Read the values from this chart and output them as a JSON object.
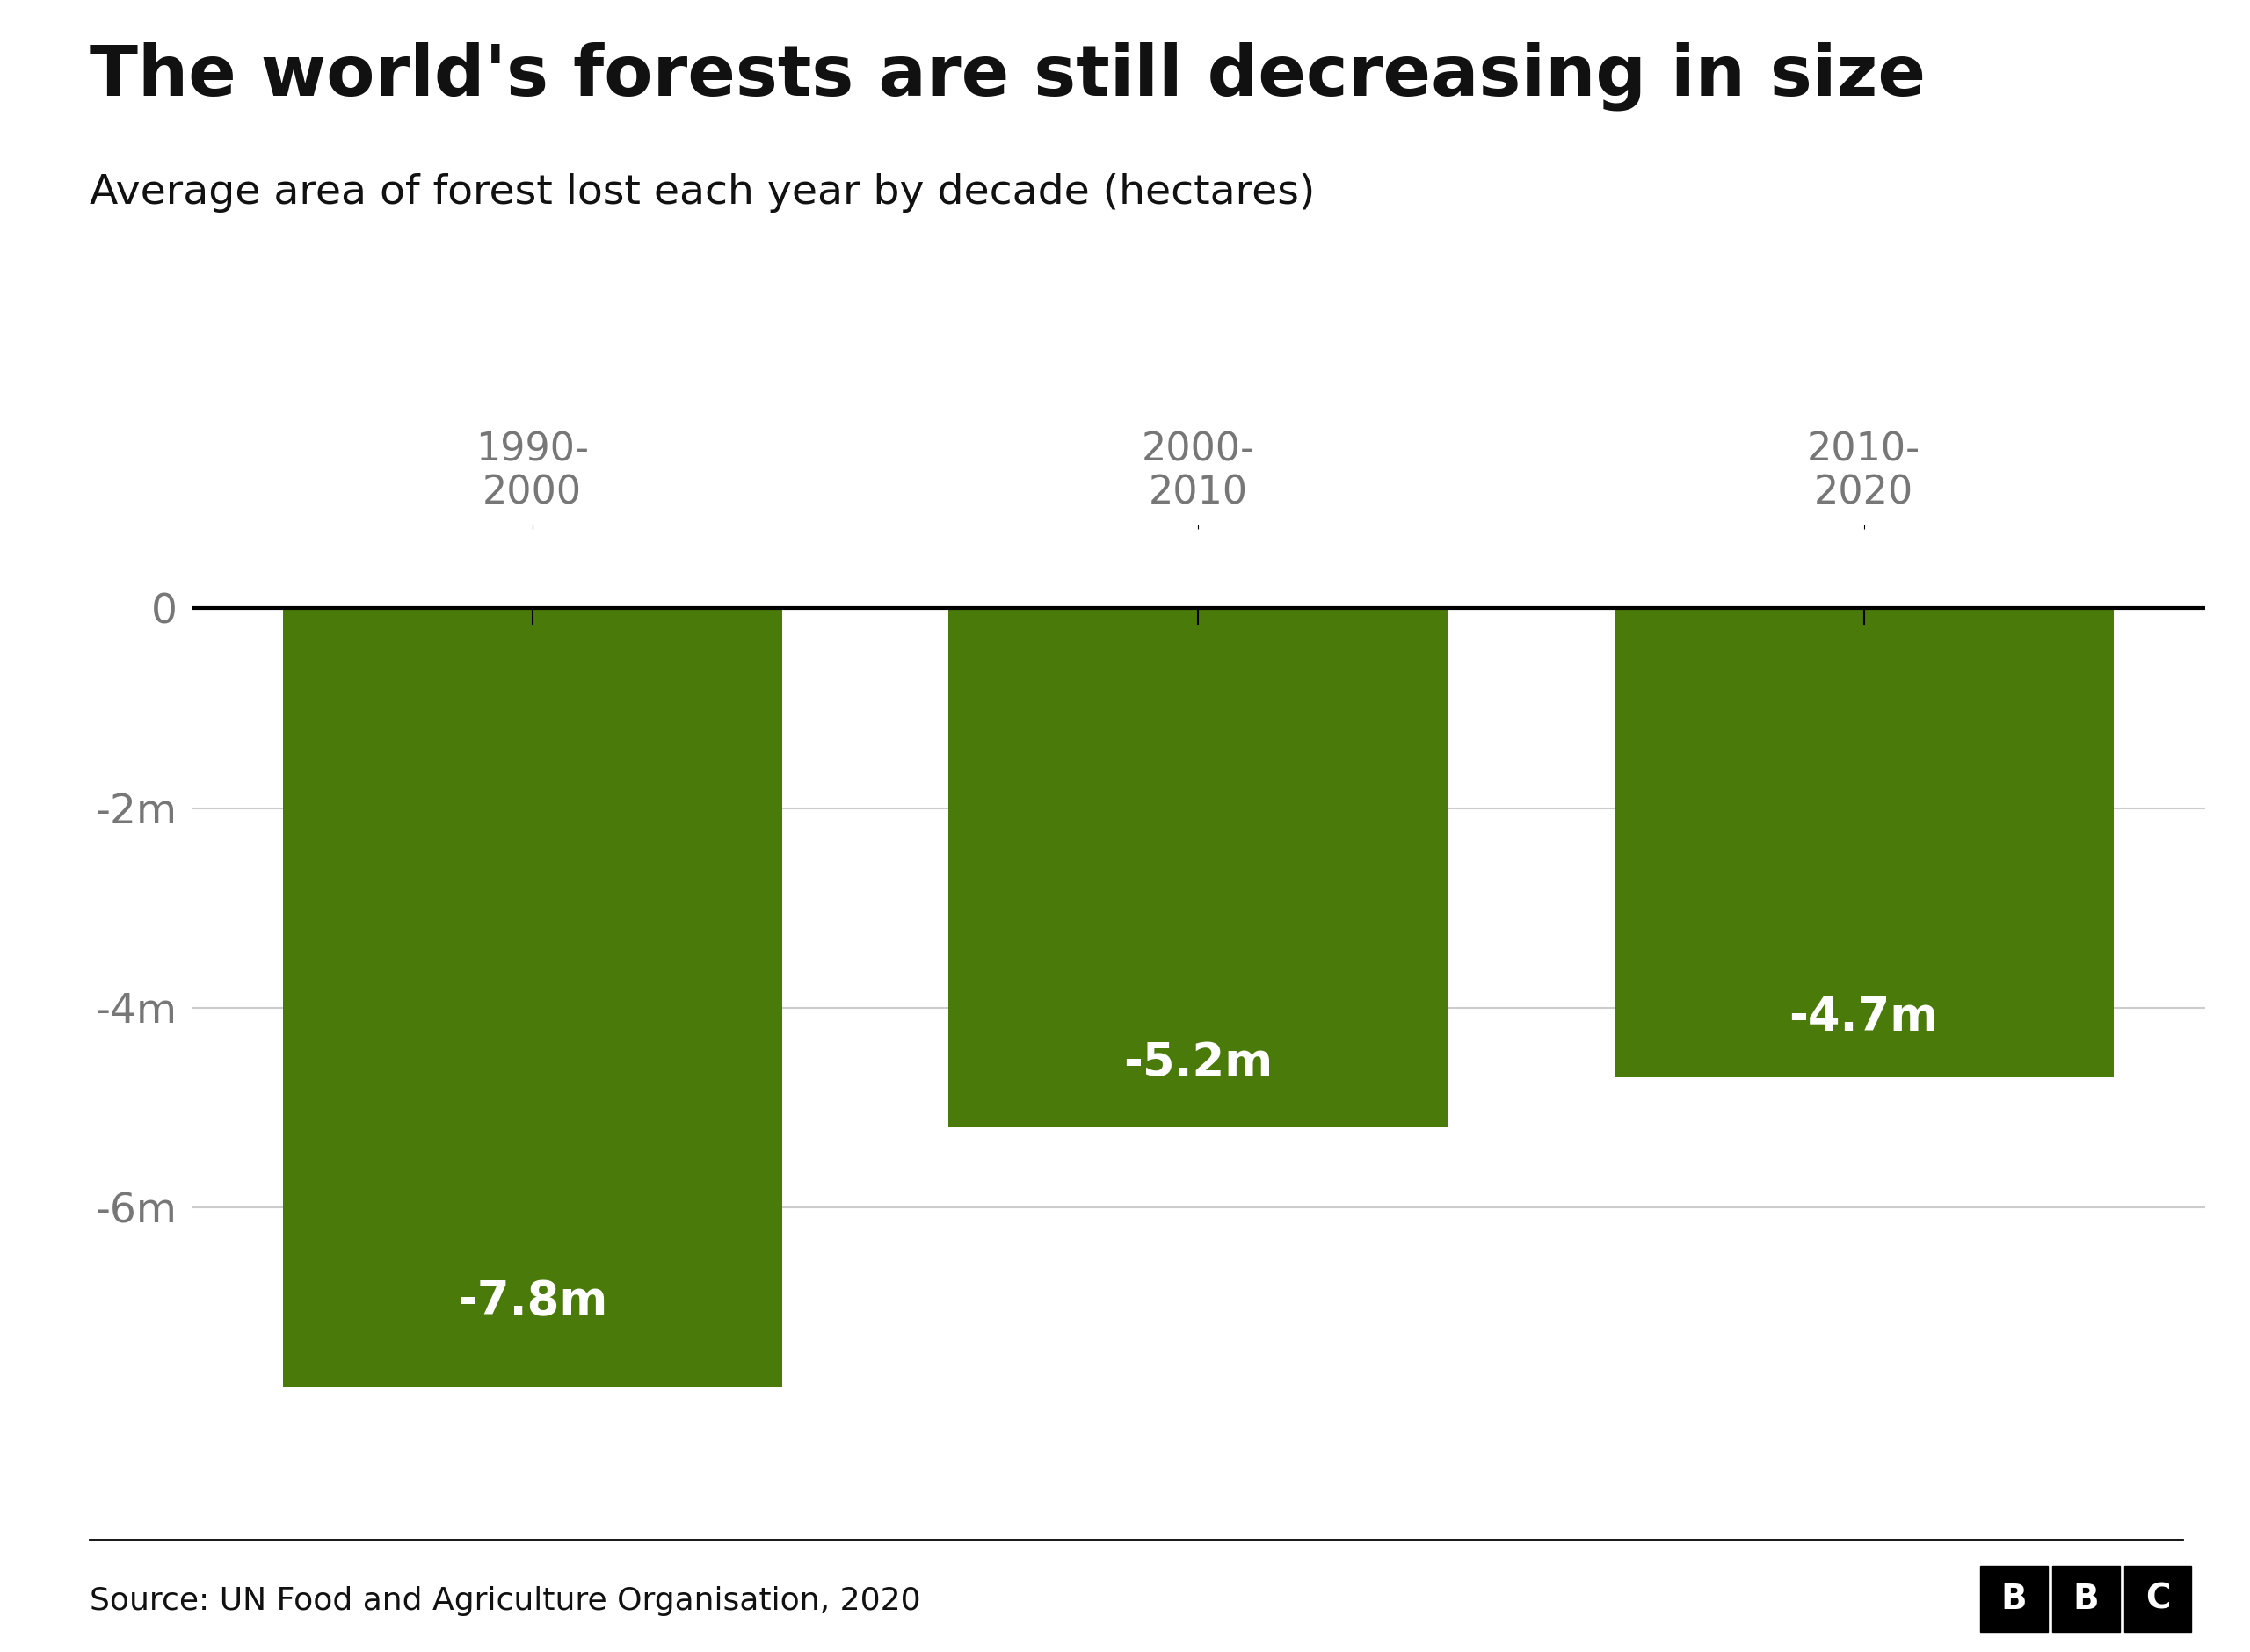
{
  "title": "The world's forests are still decreasing in size",
  "subtitle": "Average area of forest lost each year by decade (hectares)",
  "categories": [
    "1990-\n2000",
    "2000-\n2010",
    "2010-\n2020"
  ],
  "values": [
    -7800000,
    -5200000,
    -4700000
  ],
  "bar_labels": [
    "-7.8m",
    "-5.2m",
    "-4.7m"
  ],
  "bar_color": "#4a7a0a",
  "background_color": "#ffffff",
  "ylim": [
    -8800000,
    800000
  ],
  "yticks": [
    0,
    -2000000,
    -4000000,
    -6000000
  ],
  "ytick_labels": [
    "0",
    "-2m",
    "-4m",
    "-6m"
  ],
  "source_text": "Source: UN Food and Agriculture Organisation, 2020",
  "title_fontsize": 58,
  "subtitle_fontsize": 34,
  "ytick_fontsize": 34,
  "xtick_fontsize": 32,
  "source_fontsize": 26,
  "bar_label_fontsize": 38,
  "zero_line_color": "#000000",
  "grid_color": "#cccccc",
  "text_color": "#111111",
  "axis_label_color": "#777777",
  "bar_width": 0.75
}
